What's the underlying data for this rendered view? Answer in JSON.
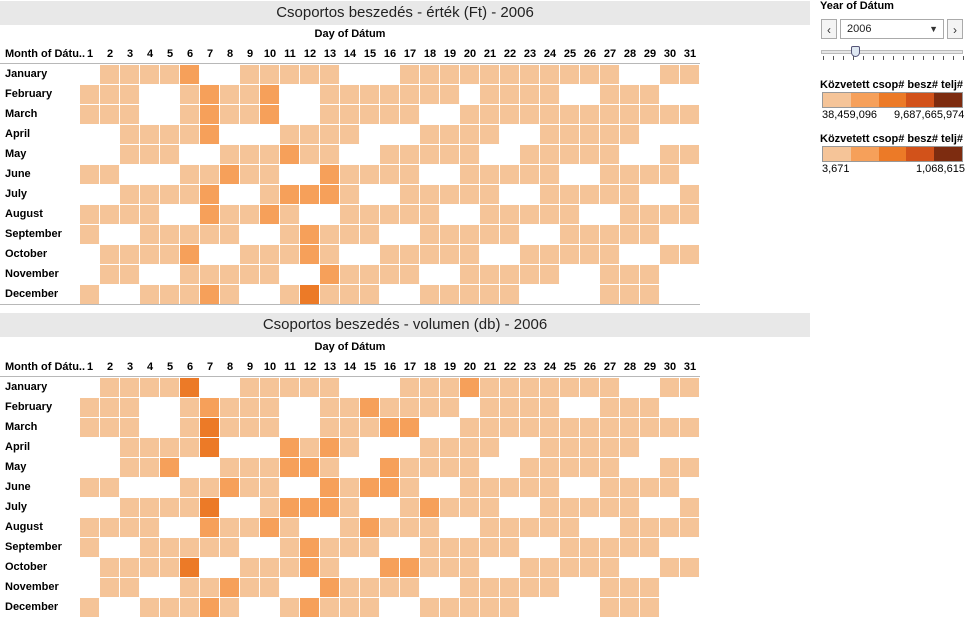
{
  "chart_data": [
    {
      "type": "heatmap",
      "title": "Csoportos beszedés - érték (Ft) - 2006",
      "xlabel": "Day of Dátum",
      "ylabel": "Month of Dátu..",
      "x": [
        1,
        2,
        3,
        4,
        5,
        6,
        7,
        8,
        9,
        10,
        11,
        12,
        13,
        14,
        15,
        16,
        17,
        18,
        19,
        20,
        21,
        22,
        23,
        24,
        25,
        26,
        27,
        28,
        29,
        30,
        31
      ],
      "y": [
        "January",
        "February",
        "March",
        "April",
        "May",
        "June",
        "July",
        "August",
        "September",
        "October",
        "November",
        "December"
      ],
      "levels_legend": "0 = no data, 1..5 = increasing value (light to dark orange)",
      "values": [
        [
          0,
          1,
          1,
          1,
          1,
          2,
          0,
          0,
          1,
          1,
          1,
          1,
          1,
          0,
          0,
          0,
          1,
          1,
          1,
          1,
          1,
          1,
          1,
          1,
          1,
          1,
          1,
          0,
          0,
          1,
          1
        ],
        [
          1,
          1,
          1,
          0,
          0,
          1,
          2,
          1,
          1,
          2,
          0,
          0,
          1,
          1,
          1,
          1,
          1,
          1,
          1,
          0,
          1,
          1,
          1,
          1,
          0,
          0,
          1,
          1,
          1,
          0,
          0
        ],
        [
          1,
          1,
          1,
          0,
          0,
          1,
          2,
          1,
          1,
          2,
          0,
          0,
          1,
          1,
          1,
          1,
          1,
          0,
          0,
          1,
          1,
          1,
          1,
          1,
          1,
          1,
          1,
          1,
          1,
          1,
          1
        ],
        [
          0,
          0,
          1,
          1,
          1,
          1,
          2,
          0,
          0,
          0,
          1,
          1,
          1,
          1,
          0,
          0,
          0,
          1,
          1,
          1,
          1,
          0,
          0,
          1,
          1,
          1,
          1,
          1,
          0,
          0,
          0
        ],
        [
          0,
          0,
          1,
          1,
          1,
          0,
          0,
          1,
          1,
          1,
          2,
          1,
          1,
          0,
          0,
          1,
          1,
          1,
          1,
          1,
          0,
          0,
          1,
          1,
          1,
          1,
          1,
          0,
          0,
          1,
          1
        ],
        [
          1,
          1,
          0,
          0,
          0,
          1,
          1,
          2,
          1,
          1,
          0,
          0,
          2,
          1,
          1,
          1,
          1,
          0,
          0,
          1,
          1,
          1,
          1,
          1,
          0,
          0,
          1,
          1,
          1,
          1,
          0
        ],
        [
          0,
          0,
          1,
          1,
          1,
          1,
          2,
          0,
          0,
          1,
          2,
          2,
          2,
          1,
          0,
          0,
          1,
          1,
          1,
          1,
          1,
          0,
          0,
          1,
          1,
          1,
          1,
          1,
          0,
          0,
          1
        ],
        [
          1,
          1,
          1,
          1,
          0,
          0,
          2,
          1,
          1,
          2,
          1,
          0,
          0,
          1,
          1,
          1,
          1,
          1,
          0,
          0,
          1,
          1,
          1,
          1,
          1,
          0,
          0,
          1,
          1,
          1,
          1
        ],
        [
          1,
          0,
          0,
          1,
          1,
          1,
          1,
          1,
          0,
          0,
          1,
          2,
          1,
          1,
          1,
          0,
          0,
          1,
          1,
          1,
          1,
          1,
          0,
          0,
          1,
          1,
          1,
          1,
          1,
          0,
          0
        ],
        [
          0,
          1,
          1,
          1,
          1,
          2,
          0,
          0,
          1,
          1,
          1,
          2,
          1,
          0,
          0,
          1,
          1,
          1,
          1,
          1,
          0,
          0,
          1,
          1,
          1,
          1,
          1,
          0,
          0,
          1,
          1
        ],
        [
          0,
          1,
          1,
          0,
          0,
          1,
          1,
          1,
          1,
          1,
          0,
          0,
          2,
          1,
          1,
          1,
          1,
          0,
          0,
          1,
          1,
          1,
          1,
          1,
          0,
          0,
          1,
          1,
          1,
          0,
          0
        ],
        [
          1,
          0,
          0,
          1,
          1,
          1,
          2,
          1,
          0,
          0,
          1,
          3,
          1,
          1,
          1,
          0,
          0,
          1,
          1,
          1,
          1,
          1,
          0,
          0,
          0,
          0,
          1,
          1,
          1,
          0,
          0
        ]
      ]
    },
    {
      "type": "heatmap",
      "title": "Csoportos beszedés - volumen (db) - 2006",
      "xlabel": "Day of Dátum",
      "ylabel": "Month of Dátu..",
      "x": [
        1,
        2,
        3,
        4,
        5,
        6,
        7,
        8,
        9,
        10,
        11,
        12,
        13,
        14,
        15,
        16,
        17,
        18,
        19,
        20,
        21,
        22,
        23,
        24,
        25,
        26,
        27,
        28,
        29,
        30,
        31
      ],
      "y": [
        "January",
        "February",
        "March",
        "April",
        "May",
        "June",
        "July",
        "August",
        "September",
        "October",
        "November",
        "December"
      ],
      "levels_legend": "0 = no data, 1..5 = increasing value (light to dark orange)",
      "values": [
        [
          0,
          1,
          1,
          1,
          1,
          3,
          0,
          0,
          1,
          1,
          1,
          1,
          1,
          0,
          0,
          0,
          1,
          1,
          1,
          2,
          1,
          1,
          1,
          1,
          1,
          1,
          1,
          0,
          0,
          1,
          1
        ],
        [
          1,
          1,
          1,
          0,
          0,
          1,
          2,
          1,
          1,
          1,
          0,
          0,
          1,
          1,
          2,
          1,
          1,
          1,
          1,
          0,
          1,
          1,
          1,
          1,
          0,
          0,
          1,
          1,
          1,
          0,
          0
        ],
        [
          1,
          1,
          1,
          0,
          0,
          1,
          3,
          1,
          1,
          1,
          0,
          0,
          1,
          1,
          1,
          2,
          2,
          0,
          0,
          1,
          1,
          1,
          1,
          1,
          1,
          1,
          1,
          1,
          1,
          1,
          1
        ],
        [
          0,
          0,
          1,
          1,
          1,
          1,
          3,
          0,
          0,
          0,
          2,
          1,
          2,
          1,
          0,
          0,
          0,
          1,
          1,
          1,
          1,
          0,
          0,
          1,
          1,
          1,
          1,
          1,
          0,
          0,
          0
        ],
        [
          0,
          0,
          1,
          1,
          2,
          0,
          0,
          1,
          1,
          1,
          2,
          2,
          1,
          0,
          0,
          2,
          1,
          1,
          1,
          1,
          0,
          0,
          1,
          1,
          1,
          1,
          1,
          0,
          0,
          1,
          1
        ],
        [
          1,
          1,
          0,
          0,
          0,
          1,
          1,
          2,
          1,
          1,
          0,
          0,
          2,
          1,
          2,
          2,
          1,
          0,
          0,
          1,
          1,
          1,
          1,
          1,
          0,
          0,
          1,
          1,
          1,
          1,
          0
        ],
        [
          0,
          0,
          1,
          1,
          1,
          1,
          3,
          0,
          0,
          1,
          2,
          2,
          2,
          1,
          0,
          0,
          1,
          2,
          1,
          1,
          1,
          0,
          0,
          1,
          1,
          1,
          1,
          1,
          0,
          0,
          1
        ],
        [
          1,
          1,
          1,
          1,
          0,
          0,
          2,
          1,
          1,
          2,
          1,
          0,
          0,
          1,
          2,
          1,
          1,
          1,
          0,
          0,
          1,
          1,
          1,
          1,
          1,
          0,
          0,
          1,
          1,
          1,
          1
        ],
        [
          1,
          0,
          0,
          1,
          1,
          1,
          1,
          1,
          0,
          0,
          1,
          2,
          1,
          1,
          1,
          0,
          0,
          1,
          1,
          1,
          1,
          1,
          0,
          0,
          1,
          1,
          1,
          1,
          1,
          0,
          0
        ],
        [
          0,
          1,
          1,
          1,
          1,
          3,
          0,
          0,
          1,
          1,
          1,
          2,
          1,
          0,
          0,
          2,
          2,
          1,
          1,
          1,
          0,
          0,
          1,
          1,
          1,
          1,
          1,
          0,
          0,
          1,
          1
        ],
        [
          0,
          1,
          1,
          0,
          0,
          1,
          1,
          2,
          1,
          1,
          0,
          0,
          2,
          1,
          1,
          1,
          1,
          0,
          0,
          1,
          1,
          1,
          1,
          1,
          0,
          0,
          1,
          1,
          1,
          0,
          0
        ],
        [
          1,
          0,
          0,
          1,
          1,
          1,
          2,
          1,
          0,
          0,
          1,
          2,
          1,
          1,
          1,
          0,
          0,
          1,
          1,
          1,
          1,
          1,
          0,
          0,
          0,
          0,
          1,
          1,
          1,
          0,
          0
        ]
      ]
    }
  ],
  "colors": {
    "levels": [
      "#ffffff",
      "#f5c498",
      "#f6a05a",
      "#ec7a27",
      "#d2521a",
      "#7d2c10"
    ],
    "title_bg": "#e8e8e8"
  },
  "filter": {
    "title": "Year of Dátum",
    "selected": "2006",
    "prev_icon": "chevron-left-icon",
    "next_icon": "chevron-right-icon",
    "slider_value": 2006
  },
  "legends": [
    {
      "title": "Közvetett csop# besz# telj# ..",
      "min": "38,459,096",
      "max": "9,687,665,974"
    },
    {
      "title": "Közvetett csop# besz# telj# ..",
      "min": "3,671",
      "max": "1,068,615"
    }
  ]
}
